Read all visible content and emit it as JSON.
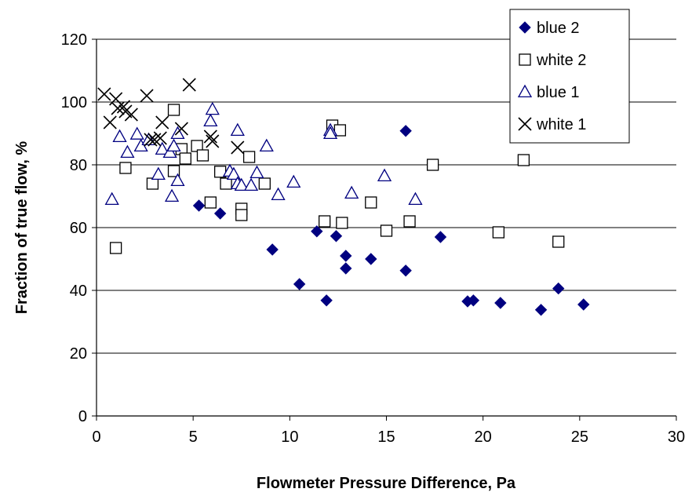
{
  "chart_data": {
    "type": "scatter",
    "title": "",
    "xlabel": "Flowmeter Pressure Difference, Pa",
    "ylabel": "Fraction of true flow, %",
    "xlim": [
      0,
      30
    ],
    "ylim": [
      0,
      120
    ],
    "x_ticks": [
      "0",
      "5",
      "10",
      "15",
      "20",
      "25",
      "30"
    ],
    "y_ticks": [
      "0",
      "20",
      "40",
      "60",
      "80",
      "100",
      "120"
    ],
    "grid": "horizontal",
    "legend_position": "top-right",
    "series": [
      {
        "name": "blue 2",
        "marker": "diamond-filled",
        "color": "#000080",
        "points": [
          [
            5.3,
            67
          ],
          [
            6.4,
            64.5
          ],
          [
            9.1,
            53
          ],
          [
            10.5,
            42
          ],
          [
            11.4,
            58.8
          ],
          [
            11.9,
            36.8
          ],
          [
            12.4,
            57.3
          ],
          [
            12.9,
            51
          ],
          [
            12.9,
            47
          ],
          [
            14.2,
            50
          ],
          [
            16.0,
            90.8
          ],
          [
            16.0,
            46.3
          ],
          [
            17.8,
            57
          ],
          [
            19.2,
            36.5
          ],
          [
            19.5,
            36.8
          ],
          [
            20.9,
            36
          ],
          [
            23.0,
            33.8
          ],
          [
            23.9,
            40.6
          ],
          [
            25.2,
            35.5
          ]
        ]
      },
      {
        "name": "white 2",
        "marker": "square-open",
        "color": "#000000",
        "points": [
          [
            1.0,
            53.5
          ],
          [
            1.5,
            79
          ],
          [
            2.9,
            74
          ],
          [
            4.0,
            97.5
          ],
          [
            4.0,
            78
          ],
          [
            4.4,
            85
          ],
          [
            4.6,
            82
          ],
          [
            5.2,
            86
          ],
          [
            5.5,
            83
          ],
          [
            5.9,
            68
          ],
          [
            6.4,
            77.8
          ],
          [
            6.7,
            74
          ],
          [
            7.5,
            66
          ],
          [
            7.5,
            64
          ],
          [
            7.9,
            82.5
          ],
          [
            8.7,
            74
          ],
          [
            11.8,
            62
          ],
          [
            12.2,
            92.5
          ],
          [
            12.6,
            91
          ],
          [
            12.7,
            61.5
          ],
          [
            14.2,
            68
          ],
          [
            15.0,
            59
          ],
          [
            16.2,
            62
          ],
          [
            17.4,
            80
          ],
          [
            20.8,
            58.5
          ],
          [
            22.1,
            81.5
          ],
          [
            23.9,
            55.5
          ]
        ]
      },
      {
        "name": "blue 1",
        "marker": "triangle-open",
        "color": "#000080",
        "points": [
          [
            0.8,
            69
          ],
          [
            1.2,
            89
          ],
          [
            1.6,
            84
          ],
          [
            2.1,
            89.8
          ],
          [
            2.3,
            86
          ],
          [
            2.7,
            88
          ],
          [
            3.2,
            77
          ],
          [
            3.4,
            85
          ],
          [
            3.8,
            84
          ],
          [
            3.9,
            70
          ],
          [
            4.0,
            86
          ],
          [
            4.2,
            90
          ],
          [
            4.2,
            75
          ],
          [
            5.9,
            94
          ],
          [
            6.0,
            97.7
          ],
          [
            6.9,
            78
          ],
          [
            7.1,
            77
          ],
          [
            7.3,
            91
          ],
          [
            7.3,
            74
          ],
          [
            7.5,
            73.5
          ],
          [
            8.0,
            73.5
          ],
          [
            8.3,
            77.5
          ],
          [
            8.8,
            86
          ],
          [
            9.4,
            70.5
          ],
          [
            10.2,
            74.5
          ],
          [
            12.1,
            91
          ],
          [
            12.1,
            90
          ],
          [
            13.2,
            71
          ],
          [
            14.9,
            76.5
          ],
          [
            16.5,
            69
          ]
        ]
      },
      {
        "name": "white 1",
        "marker": "x",
        "color": "#000000",
        "points": [
          [
            0.4,
            102.5
          ],
          [
            0.7,
            93.5
          ],
          [
            1.0,
            101
          ],
          [
            1.1,
            98
          ],
          [
            1.4,
            98.5
          ],
          [
            1.5,
            97
          ],
          [
            1.8,
            96
          ],
          [
            2.6,
            102
          ],
          [
            2.8,
            88
          ],
          [
            3.0,
            88
          ],
          [
            3.3,
            88.5
          ],
          [
            3.4,
            93.5
          ],
          [
            4.4,
            91.5
          ],
          [
            4.8,
            105.5
          ],
          [
            5.9,
            89
          ],
          [
            6.0,
            87.5
          ],
          [
            7.3,
            85.5
          ]
        ]
      }
    ]
  }
}
